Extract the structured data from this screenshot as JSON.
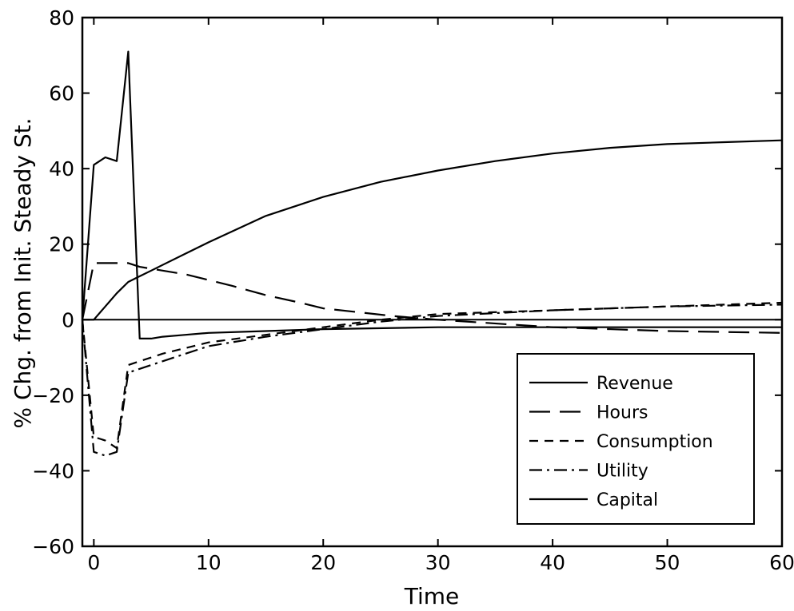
{
  "chart_data": {
    "type": "line",
    "title": "",
    "xlabel": "Time",
    "ylabel": "% Chg. from Init. Steady St.",
    "xlim": [
      -1,
      60
    ],
    "ylim": [
      -60,
      80
    ],
    "xticks": [
      0,
      10,
      20,
      30,
      40,
      50,
      60
    ],
    "yticks": [
      -60,
      -40,
      -20,
      0,
      20,
      40,
      60,
      80
    ],
    "grid": false,
    "legend_position": "bottom-right",
    "zero_line": true,
    "series": [
      {
        "name": "Revenue",
        "dash": "solid",
        "x": [
          -1,
          0,
          1,
          2,
          3,
          4,
          5,
          6,
          8,
          10,
          15,
          20,
          30,
          40,
          50,
          60
        ],
        "y": [
          0,
          41,
          43,
          42,
          71,
          -5,
          -5,
          -4.5,
          -4,
          -3.5,
          -3,
          -2.5,
          -2,
          -2,
          -2,
          -2
        ]
      },
      {
        "name": "Hours",
        "dash": "long-dash",
        "x": [
          -1,
          0,
          1,
          2,
          3,
          4,
          5,
          6,
          8,
          10,
          12,
          15,
          18,
          20,
          23,
          26,
          30,
          40,
          50,
          60
        ],
        "y": [
          0,
          15,
          15,
          15,
          15,
          14,
          13.5,
          13,
          12,
          10.5,
          9,
          6.5,
          4.5,
          3,
          2,
          1,
          0,
          -2,
          -3,
          -3.5
        ]
      },
      {
        "name": "Consumption",
        "dash": "short-dash",
        "x": [
          -1,
          0,
          1,
          2,
          3,
          4,
          5,
          6,
          8,
          10,
          15,
          20,
          25,
          30,
          40,
          50,
          60
        ],
        "y": [
          0,
          -31,
          -32,
          -34,
          -12,
          -11,
          -10,
          -9,
          -7.5,
          -6,
          -4,
          -2,
          0,
          1.5,
          2.5,
          3.5,
          4.5
        ]
      },
      {
        "name": "Utility",
        "dash": "dash-dot",
        "x": [
          -1,
          0,
          1,
          2,
          3,
          4,
          5,
          6,
          8,
          10,
          15,
          20,
          25,
          30,
          40,
          50,
          60
        ],
        "y": [
          0,
          -35,
          -36,
          -35,
          -14,
          -13,
          -12,
          -11,
          -9,
          -7,
          -4.5,
          -2.5,
          -0.5,
          1,
          2.5,
          3.5,
          4
        ]
      },
      {
        "name": "Capital",
        "dash": "solid",
        "x": [
          -1,
          0,
          1,
          2,
          3,
          4,
          5,
          6,
          8,
          10,
          15,
          20,
          25,
          30,
          35,
          40,
          45,
          50,
          55,
          60
        ],
        "y": [
          0,
          0,
          3.5,
          7,
          10,
          11.5,
          13,
          14.5,
          17.5,
          20.5,
          27.5,
          32.5,
          36.5,
          39.5,
          42,
          44,
          45.5,
          46.5,
          47,
          47.5
        ]
      }
    ]
  }
}
